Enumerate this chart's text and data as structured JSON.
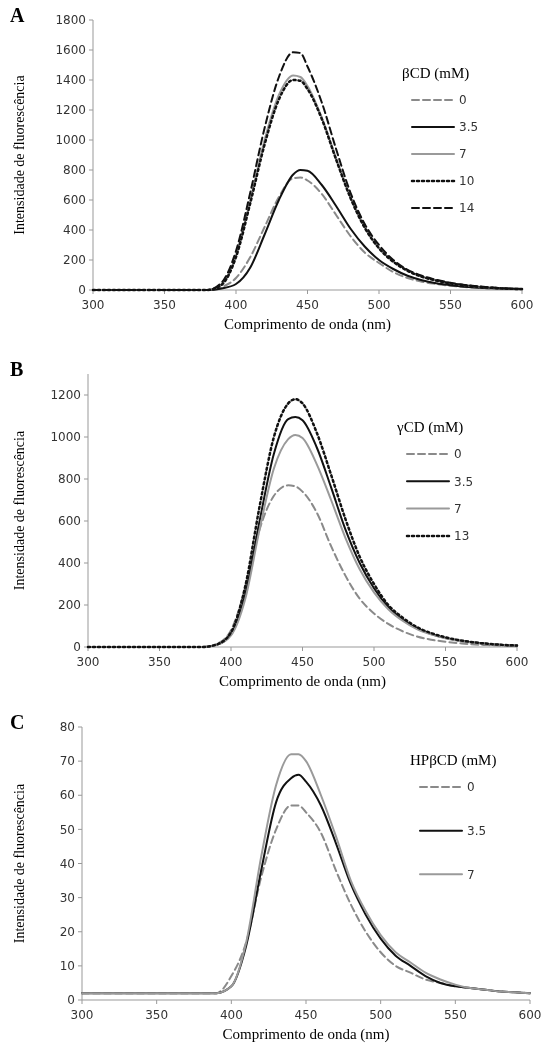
{
  "chart_data": [
    {
      "type": "line",
      "title": "A",
      "xlabel": "Comprimento de onda (nm)",
      "ylabel": "Intensidade de fluorescência",
      "legend_title": "βCD (mM)",
      "legend": "top right",
      "grid": false,
      "xlim": [
        300,
        600
      ],
      "xticks": [
        300,
        350,
        400,
        450,
        500,
        550,
        600
      ],
      "ylim": [
        0,
        1800
      ],
      "yticks": [
        0,
        200,
        400,
        600,
        800,
        1000,
        1200,
        1400,
        1600,
        1800
      ],
      "x": [
        300,
        350,
        380,
        390,
        400,
        410,
        420,
        430,
        440,
        445,
        450,
        460,
        470,
        480,
        490,
        500,
        510,
        520,
        530,
        540,
        550,
        560,
        570,
        580,
        590,
        600
      ],
      "series": [
        {
          "name": "0",
          "color": "#8a8a8a",
          "line_style": "dashed",
          "values": [
            0,
            0,
            0,
            20,
            80,
            220,
            420,
            620,
            745,
            750,
            730,
            640,
            500,
            360,
            250,
            180,
            120,
            80,
            55,
            40,
            28,
            20,
            14,
            10,
            7,
            5
          ]
        },
        {
          "name": "3.5",
          "color": "#111111",
          "line_style": "solid",
          "values": [
            0,
            0,
            0,
            10,
            40,
            150,
            370,
            600,
            770,
            800,
            795,
            700,
            560,
            410,
            290,
            200,
            140,
            95,
            65,
            45,
            32,
            22,
            15,
            11,
            8,
            6
          ]
        },
        {
          "name": "7",
          "color": "#9a9a9a",
          "line_style": "solid",
          "values": [
            0,
            0,
            0,
            40,
            230,
            600,
            1000,
            1300,
            1430,
            1420,
            1360,
            1150,
            880,
            620,
            420,
            280,
            190,
            130,
            90,
            65,
            45,
            32,
            22,
            15,
            10,
            7
          ]
        },
        {
          "name": "10",
          "color": "#111111",
          "line_style": "dotted",
          "values": [
            0,
            0,
            0,
            35,
            220,
            580,
            970,
            1270,
            1400,
            1395,
            1340,
            1140,
            870,
            615,
            415,
            278,
            188,
            128,
            88,
            63,
            44,
            31,
            21,
            14,
            9,
            6
          ]
        },
        {
          "name": "14",
          "color": "#111111",
          "line_style": "dashed",
          "values": [
            0,
            0,
            0,
            50,
            260,
            650,
            1080,
            1420,
            1585,
            1580,
            1490,
            1250,
            940,
            650,
            440,
            300,
            200,
            135,
            95,
            68,
            48,
            34,
            24,
            16,
            10,
            7
          ]
        }
      ]
    },
    {
      "type": "line",
      "title": "B",
      "xlabel": "Comprimento de onda (nm)",
      "ylabel": "Intensidade de fluorescência",
      "legend_title": "γCD (mM)",
      "legend": "top right",
      "grid": false,
      "xlim": [
        300,
        600
      ],
      "xticks": [
        300,
        350,
        400,
        450,
        500,
        550,
        600
      ],
      "ylim": [
        0,
        1300
      ],
      "yticks": [
        0,
        200,
        400,
        600,
        800,
        1000,
        1200
      ],
      "x": [
        300,
        350,
        380,
        390,
        400,
        410,
        420,
        430,
        440,
        445,
        450,
        460,
        470,
        480,
        490,
        500,
        510,
        520,
        530,
        540,
        550,
        560,
        570,
        580,
        590,
        600
      ],
      "series": [
        {
          "name": "0",
          "color": "#8a8a8a",
          "line_style": "dashed",
          "values": [
            0,
            0,
            0,
            15,
            80,
            280,
            560,
            720,
            770,
            765,
            740,
            640,
            480,
            340,
            230,
            160,
            110,
            75,
            50,
            35,
            25,
            18,
            12,
            9,
            6,
            4
          ]
        },
        {
          "name": "3.5",
          "color": "#111111",
          "line_style": "solid",
          "values": [
            0,
            0,
            0,
            10,
            60,
            250,
            600,
            920,
            1085,
            1095,
            1080,
            950,
            760,
            560,
            400,
            280,
            190,
            130,
            90,
            62,
            43,
            30,
            21,
            14,
            10,
            7
          ]
        },
        {
          "name": "7",
          "color": "#9a9a9a",
          "line_style": "solid",
          "values": [
            0,
            0,
            0,
            10,
            55,
            230,
            560,
            850,
            990,
            1010,
            995,
            870,
            700,
            520,
            370,
            260,
            180,
            125,
            85,
            60,
            42,
            29,
            20,
            14,
            10,
            7
          ]
        },
        {
          "name": "13",
          "color": "#111111",
          "line_style": "dotted",
          "values": [
            0,
            0,
            0,
            12,
            70,
            290,
            670,
            1000,
            1160,
            1180,
            1160,
            1020,
            820,
            610,
            430,
            300,
            200,
            140,
            95,
            66,
            46,
            32,
            22,
            15,
            10,
            7
          ]
        }
      ]
    },
    {
      "type": "line",
      "title": "C",
      "xlabel": "Comprimento de onda (nm)",
      "ylabel": "Intensidade de fluorescência",
      "legend_title": "HPβCD (mM)",
      "legend": "top right",
      "grid": false,
      "xlim": [
        300,
        600
      ],
      "xticks": [
        300,
        350,
        400,
        450,
        500,
        550,
        600
      ],
      "ylim": [
        0,
        80
      ],
      "yticks": [
        0,
        10,
        20,
        30,
        40,
        50,
        60,
        70,
        80
      ],
      "x": [
        300,
        350,
        380,
        390,
        400,
        410,
        420,
        430,
        440,
        445,
        450,
        460,
        470,
        480,
        490,
        500,
        510,
        520,
        530,
        540,
        550,
        560,
        570,
        580,
        590,
        600
      ],
      "series": [
        {
          "name": "0",
          "color": "#8a8a8a",
          "line_style": "dashed",
          "values": [
            2,
            2,
            2,
            2,
            7,
            17,
            36,
            50,
            57,
            57,
            55,
            49,
            38,
            28,
            20,
            14,
            10,
            8,
            6,
            5,
            4,
            3.5,
            3,
            2.5,
            2.3,
            2
          ]
        },
        {
          "name": "3.5",
          "color": "#111111",
          "line_style": "solid",
          "values": [
            2,
            2,
            2,
            2,
            4,
            16,
            38,
            58,
            65,
            66,
            64,
            57,
            46,
            34,
            25,
            18,
            13,
            10,
            7,
            5,
            4,
            3.5,
            3,
            2.5,
            2.3,
            2
          ]
        },
        {
          "name": "7",
          "color": "#9a9a9a",
          "line_style": "solid",
          "values": [
            2,
            2,
            2,
            2,
            4,
            17,
            42,
            63,
            72,
            72,
            70,
            60,
            48,
            35,
            26,
            19,
            14,
            11,
            8,
            6,
            4.5,
            3.5,
            3,
            2.5,
            2.3,
            2
          ]
        }
      ]
    }
  ]
}
